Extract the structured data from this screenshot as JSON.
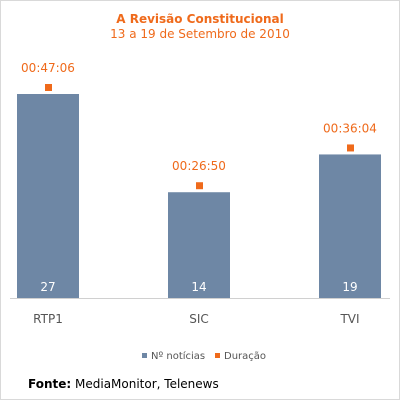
{
  "chart_data": {
    "type": "bar",
    "title": "A Revisão Constitucional",
    "subtitle": "13 a 19 de Setembro de 2010",
    "categories": [
      "RTP1",
      "SIC",
      "TVI"
    ],
    "series": [
      {
        "name": "Nº notícias",
        "type": "bar",
        "values": [
          27,
          14,
          19
        ],
        "color": "#6e87a5"
      },
      {
        "name": "Duração",
        "type": "point",
        "values": [
          "00:47:06",
          "00:26:50",
          "00:36:04"
        ],
        "color": "#ef6a1b"
      }
    ],
    "bar_label_color": "#ffffff",
    "point_label_color": "#ef6a1b",
    "grid": false,
    "legend": "bottom-center"
  },
  "source": {
    "label": "Fonte:",
    "text": "MediaMonitor, Telenews"
  }
}
